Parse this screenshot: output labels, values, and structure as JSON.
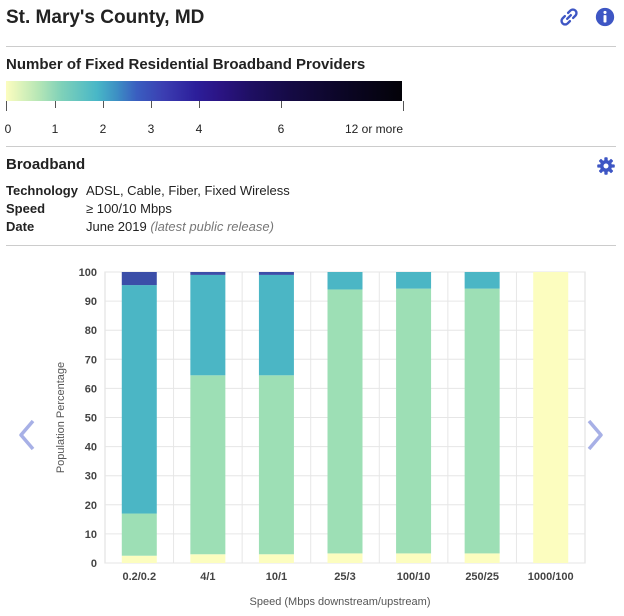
{
  "header": {
    "title": "St. Mary's County, MD",
    "link_icon": "link-icon",
    "info_icon": "info-circle-icon"
  },
  "legend": {
    "title": "Number of Fixed Residential Broadband Providers",
    "ticks": [
      "0",
      "1",
      "2",
      "3",
      "4",
      "6",
      "12 or more"
    ]
  },
  "broadband": {
    "title": "Broadband",
    "settings_icon": "gear-icon",
    "rows": [
      {
        "key": "Technology",
        "value": "ADSL, Cable, Fiber, Fixed Wireless"
      },
      {
        "key": "Speed",
        "value": "≥ 100/10 Mbps"
      },
      {
        "key": "Date",
        "value": "June 2019",
        "note": "(latest public release)"
      }
    ]
  },
  "navigation": {
    "prev_icon": "chevron-left-icon",
    "next_icon": "chevron-right-icon"
  },
  "colors": {
    "accent": "#3e56c4",
    "p0": "#fcfdbf",
    "p1": "#9ddfb5",
    "p2": "#4bb6c5",
    "p3": "#3b4ea8"
  },
  "chart_data": {
    "type": "bar",
    "stacked": true,
    "categories": [
      "0.2/0.2",
      "4/1",
      "10/1",
      "25/3",
      "100/10",
      "250/25",
      "1000/100"
    ],
    "series": [
      {
        "values": [
          2.5,
          3,
          3,
          3.3,
          3.3,
          3.3,
          100
        ],
        "color": "#fcfdbf"
      },
      {
        "values": [
          14.5,
          61.5,
          61.5,
          90.7,
          91,
          91,
          0
        ],
        "color": "#9ddfb5"
      },
      {
        "values": [
          78.5,
          34.5,
          34.5,
          6,
          5.7,
          5.7,
          0
        ],
        "color": "#4bb6c5"
      },
      {
        "values": [
          4.5,
          1,
          1,
          0,
          0,
          0,
          0
        ],
        "color": "#3b4ea8"
      }
    ],
    "ylim": [
      0,
      100
    ],
    "yticks": [
      0,
      10,
      20,
      30,
      40,
      50,
      60,
      70,
      80,
      90,
      100
    ],
    "xlabel": "Speed (Mbps downstream/upstream)",
    "ylabel": "Population Percentage",
    "grid": true
  }
}
